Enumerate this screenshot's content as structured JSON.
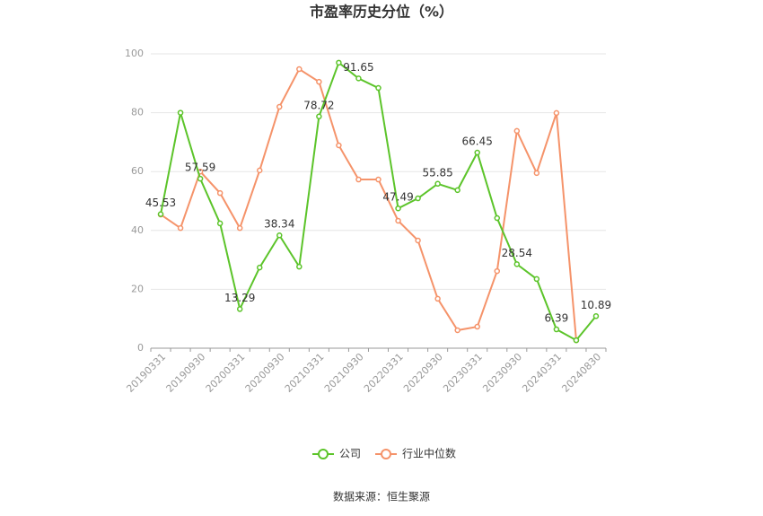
{
  "chart_data": {
    "type": "line",
    "title": "市盈率历史分位（%）",
    "categories": [
      "20190331",
      null,
      "20190930",
      null,
      "20200331",
      null,
      "20200930",
      null,
      "20210331",
      null,
      "20210930",
      null,
      "20220331",
      null,
      "20220930",
      null,
      "20230331",
      null,
      "20230930",
      null,
      "20240331",
      null,
      "20240830"
    ],
    "series": [
      {
        "name": "公司",
        "color": "#5cc42a",
        "values": [
          45.53,
          80,
          57.59,
          42.4,
          13.29,
          27.4,
          38.34,
          27.7,
          78.72,
          97,
          91.65,
          88.4,
          47.49,
          50.9,
          55.85,
          53.7,
          66.45,
          44.2,
          28.54,
          23.5,
          6.39,
          2.7,
          10.89
        ],
        "value_labels": [
          "45.53",
          null,
          "57.59",
          null,
          "13.29",
          null,
          "38.34",
          null,
          "78.72",
          null,
          "91.65",
          null,
          "47.49",
          null,
          "55.85",
          null,
          "66.45",
          null,
          "28.54",
          null,
          "6.39",
          null,
          "10.89"
        ]
      },
      {
        "name": "行业中位数",
        "color": "#f5936a",
        "values": [
          45.4,
          40.8,
          60,
          52.7,
          40.8,
          60.4,
          82,
          94.8,
          90.5,
          68.9,
          57.3,
          57.3,
          43.3,
          36.6,
          16.8,
          6.1,
          7.3,
          26.2,
          73.8,
          59.5,
          79.9,
          2.7,
          null
        ]
      }
    ],
    "ylim": [
      0,
      100
    ],
    "yticks": [
      0,
      20,
      40,
      60,
      80,
      100
    ],
    "grid": true,
    "source": "数据来源：恒生聚源"
  }
}
